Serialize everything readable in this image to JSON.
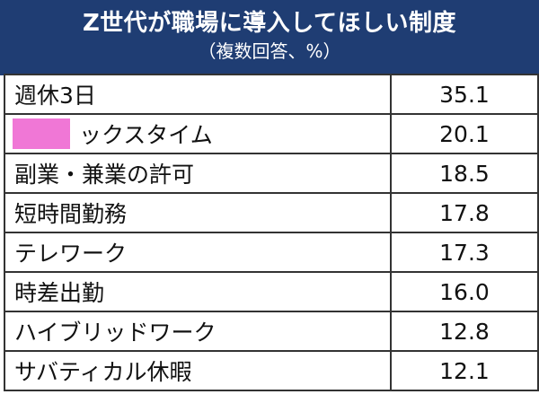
{
  "header": {
    "title": "Z世代が職場に導入してほしい制度",
    "subtitle": "（複数回答、%）"
  },
  "rows": [
    {
      "label": "週休3日",
      "value": "35.1"
    },
    {
      "label": "ックスタイム",
      "value": "20.1",
      "redacted_prefix": true,
      "redaction_color": "#f077d6"
    },
    {
      "label": "副業・兼業の許可",
      "value": "18.5"
    },
    {
      "label": "短時間勤務",
      "value": "17.8"
    },
    {
      "label": "テレワーク",
      "value": "17.3"
    },
    {
      "label": "時差出勤",
      "value": "16.0"
    },
    {
      "label": "ハイブリッドワーク",
      "value": "12.8"
    },
    {
      "label": "サバティカル休暇",
      "value": "12.1"
    }
  ],
  "colors": {
    "header_bg": "#1f3d73",
    "header_text": "#ffffff",
    "border": "#333333"
  }
}
